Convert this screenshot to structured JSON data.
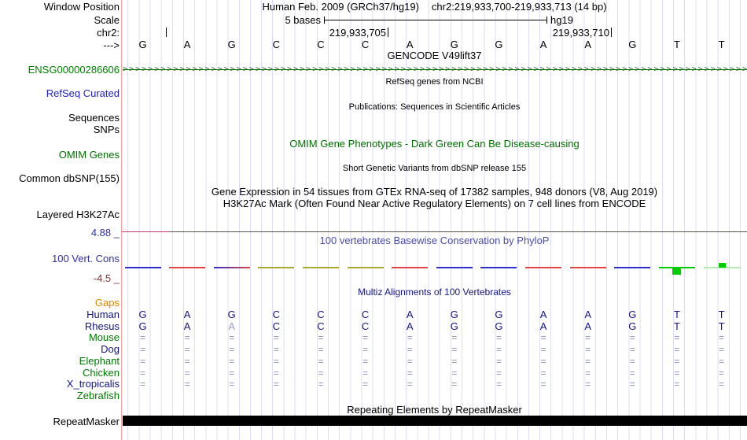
{
  "header": {
    "window_position_label": "Window Position",
    "assembly": "Human Feb. 2009 (GRCh37/hg19)",
    "position": "chr2:219,933,700-219,933,713 (14 bp)"
  },
  "ruler": {
    "scale_label": "Scale",
    "scale_value": "5 bases",
    "genome": "hg19",
    "chrom_label": "chr2:",
    "tick_left": "219,933,705",
    "tick_right": "219,933,710",
    "strand_label": "--->"
  },
  "sequence": {
    "bases": [
      "G",
      "A",
      "G",
      "C",
      "C",
      "C",
      "A",
      "G",
      "G",
      "A",
      "A",
      "G",
      "T",
      "T"
    ]
  },
  "tracks": {
    "gencode": {
      "title": "GENCODE V49lift37",
      "gene_id": "ENSG00000286606",
      "arrow_glyph": ">",
      "color": "#006400"
    },
    "refseq": {
      "title": "RefSeq genes from NCBI",
      "label": "RefSeq Curated"
    },
    "publications": {
      "title": "Publications: Sequences in Scientific Articles",
      "sequences_label": "Sequences",
      "snps_label": "SNPs"
    },
    "omim": {
      "title": "OMIM Gene Phenotypes - Dark Green Can Be Disease-causing",
      "label": "OMIM Genes",
      "color": "#006e00"
    },
    "dbsnp": {
      "title": "Short Genetic Variants from dbSNP release 155",
      "label": "Common dbSNP(155)"
    },
    "gtex": {
      "title": "Gene Expression in 54 tissues from GTEx RNA-seq of 17382 samples, 948 donors (V8, Aug 2019)"
    },
    "h3k27ac": {
      "title": "H3K27Ac Mark (Often Found Near Active Regulatory Elements) on 7 cell lines from ENCODE",
      "label": "Layered H3K27Ac"
    },
    "conservation": {
      "title": "100 vertebrates Basewise Conservation by PhyloP",
      "label": "100 Vert. Cons",
      "axis_max": "4.88 _",
      "axis_min": "-4.5 _",
      "bar_color": "#00cc00",
      "segments": [
        {
          "colors": [
            "#2f2fc8",
            "#2f2fc8"
          ]
        },
        {
          "colors": [
            "#e04545",
            "#e04545"
          ]
        },
        {
          "colors": [
            "#2f2fc8",
            "#e04545"
          ]
        },
        {
          "colors": [
            "#aaaa33",
            "#aaaa33"
          ]
        },
        {
          "colors": [
            "#aaaa33",
            "#aaaa33"
          ]
        },
        {
          "colors": [
            "#aaaa33",
            "#aaaa33"
          ]
        },
        {
          "colors": [
            "#e04545",
            "#e04545"
          ]
        },
        {
          "colors": [
            "#2f2fc8",
            "#2f2fc8"
          ]
        },
        {
          "colors": [
            "#2f2fc8",
            "#2f2fc8"
          ]
        },
        {
          "colors": [
            "#e04545",
            "#e04545"
          ]
        },
        {
          "colors": [
            "#e04545",
            "#e04545"
          ]
        },
        {
          "colors": [
            "#2f2fc8",
            "#2f2fc8"
          ]
        },
        {
          "colors": [
            "#00cc00",
            "#00cc00"
          ],
          "bar": "down"
        },
        {
          "colors": [
            "#b2e8b2",
            "#b2e8b2"
          ],
          "bar": "up"
        }
      ]
    },
    "multiz": {
      "title": "Multiz Alignments of 100 Vertebrates",
      "gap_glyph": "=",
      "letter_color": "#151580",
      "faded_letter_color": "#9a9ace",
      "gap_color": "#8890bb",
      "rows": [
        {
          "name": "Gaps",
          "color": "#dd8800",
          "type": "empty"
        },
        {
          "name": "Human",
          "color": "#151580",
          "type": "letters",
          "letters": [
            "G",
            "A",
            "G",
            "C",
            "C",
            "C",
            "A",
            "G",
            "G",
            "A",
            "A",
            "G",
            "T",
            "T"
          ]
        },
        {
          "name": "Rhesus",
          "color": "#151580",
          "type": "letters",
          "letters": [
            "G",
            "A",
            "A",
            "C",
            "C",
            "C",
            "A",
            "G",
            "G",
            "A",
            "A",
            "G",
            "T",
            "T"
          ],
          "faded_indices": [
            2
          ]
        },
        {
          "name": "Mouse",
          "color": "#007800",
          "type": "gaps"
        },
        {
          "name": "Dog",
          "color": "#151580",
          "type": "gaps"
        },
        {
          "name": "Elephant",
          "color": "#007800",
          "type": "gaps"
        },
        {
          "name": "Chicken",
          "color": "#007800",
          "type": "gaps"
        },
        {
          "name": "X_tropicalis",
          "color": "#151580",
          "type": "gaps"
        },
        {
          "name": "Zebrafish",
          "color": "#007800",
          "type": "empty"
        }
      ]
    },
    "repeatmasker": {
      "title": "Repeating Elements by RepeatMasker",
      "label": "RepeatMasker",
      "bar_color": "#000000"
    }
  },
  "colors": {
    "gridline": "#dcdcf2",
    "window_guideline": "#f7a3a3",
    "phylop_title": "#4b4ba8",
    "navy_label": "#30309a",
    "blue_label": "#2222bb",
    "green_label": "#006e00",
    "orange_label": "#dd8800"
  }
}
